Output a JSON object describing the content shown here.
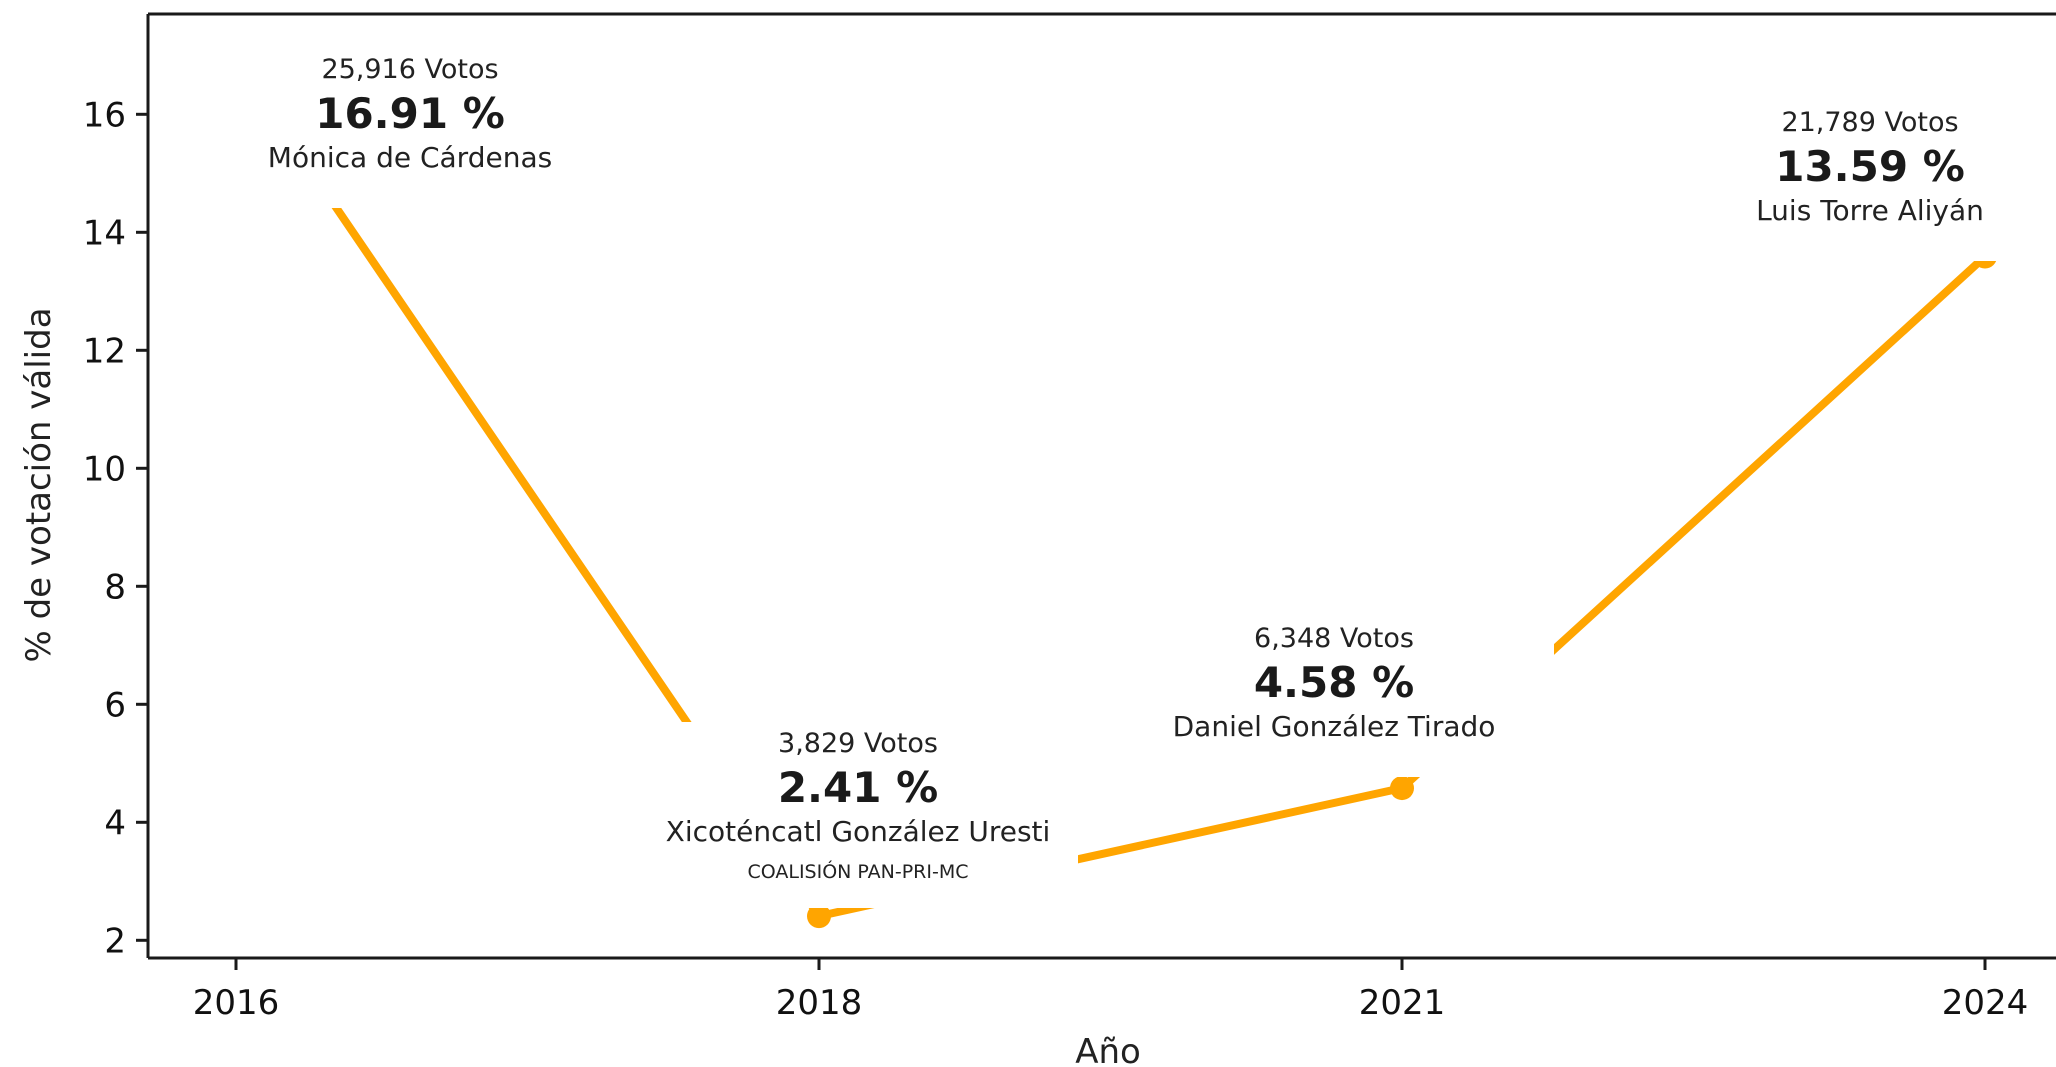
{
  "chart_data": {
    "type": "line",
    "xlabel": "Año",
    "ylabel": "% de votación válida",
    "categories": [
      "2016",
      "2018",
      "2021",
      "2024"
    ],
    "series": [
      {
        "values": [
          16.91,
          2.41,
          4.58,
          13.59
        ],
        "color": "#FFA500"
      }
    ],
    "ylim": [
      1.7,
      17.7
    ],
    "yticks": [
      2,
      4,
      6,
      8,
      10,
      12,
      14,
      16
    ],
    "grid": false,
    "annotations": [
      {
        "votes": "25,916 Votos",
        "percent": "16.91 %",
        "candidate": "Mónica de  Cárdenas",
        "note": ""
      },
      {
        "votes": "3,829 Votos",
        "percent": "2.41 %",
        "candidate": "Xicoténcatl González Uresti",
        "note": "COALISIÓN PAN-PRI-MC"
      },
      {
        "votes": "6,348 Votos",
        "percent": "4.58 %",
        "candidate": "Daniel González Tirado",
        "note": ""
      },
      {
        "votes": "21,789 Votos",
        "percent": "13.59 %",
        "candidate": "Luis Torre Aliyán",
        "note": ""
      }
    ]
  }
}
